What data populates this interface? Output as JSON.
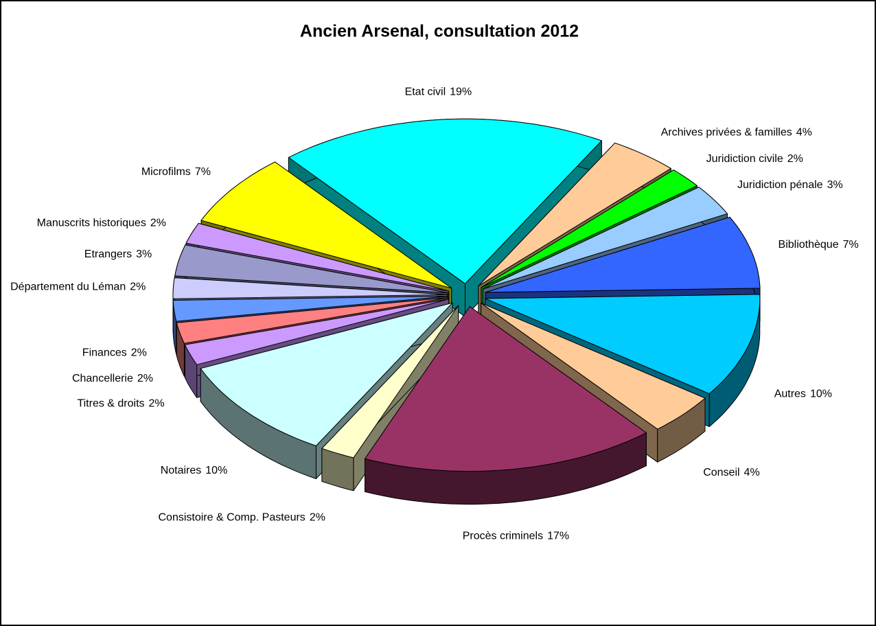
{
  "chart_data": {
    "type": "pie",
    "title": "Ancien Arsenal, consultation 2012",
    "categories": [
      "Etat civil",
      "Archives privées & familles",
      "Juridiction civile",
      "Juridiction pénale",
      "Bibliothèque",
      "Autres",
      "Conseil",
      "Procès criminels",
      "Consistoire & Comp. Pasteurs",
      "Notaires",
      "Titres & droits",
      "Chancellerie",
      "Finances",
      "Département du Léman",
      "Etrangers",
      "Manuscrits historiques",
      "Microfilms"
    ],
    "values": [
      19,
      4,
      2,
      3,
      7,
      10,
      4,
      17,
      2,
      10,
      2,
      2,
      2,
      2,
      3,
      2,
      7
    ],
    "value_labels": [
      "19%",
      "4%",
      "2%",
      "3%",
      "7%",
      "10%",
      "4%",
      "17%",
      "2%",
      "10%",
      "2%",
      "2%",
      "2%",
      "2%",
      "3%",
      "2%",
      "7%"
    ],
    "colors": [
      "#00ffff",
      "#ffcc99",
      "#00ff00",
      "#99ccff",
      "#3366ff",
      "#00ccff",
      "#ffcc99",
      "#993366",
      "#ffffcc",
      "#ccffff",
      "#cc99ff",
      "#ff8080",
      "#6699ff",
      "#ccccff",
      "#9999cc",
      "#cc99ff",
      "#ffff00"
    ]
  }
}
